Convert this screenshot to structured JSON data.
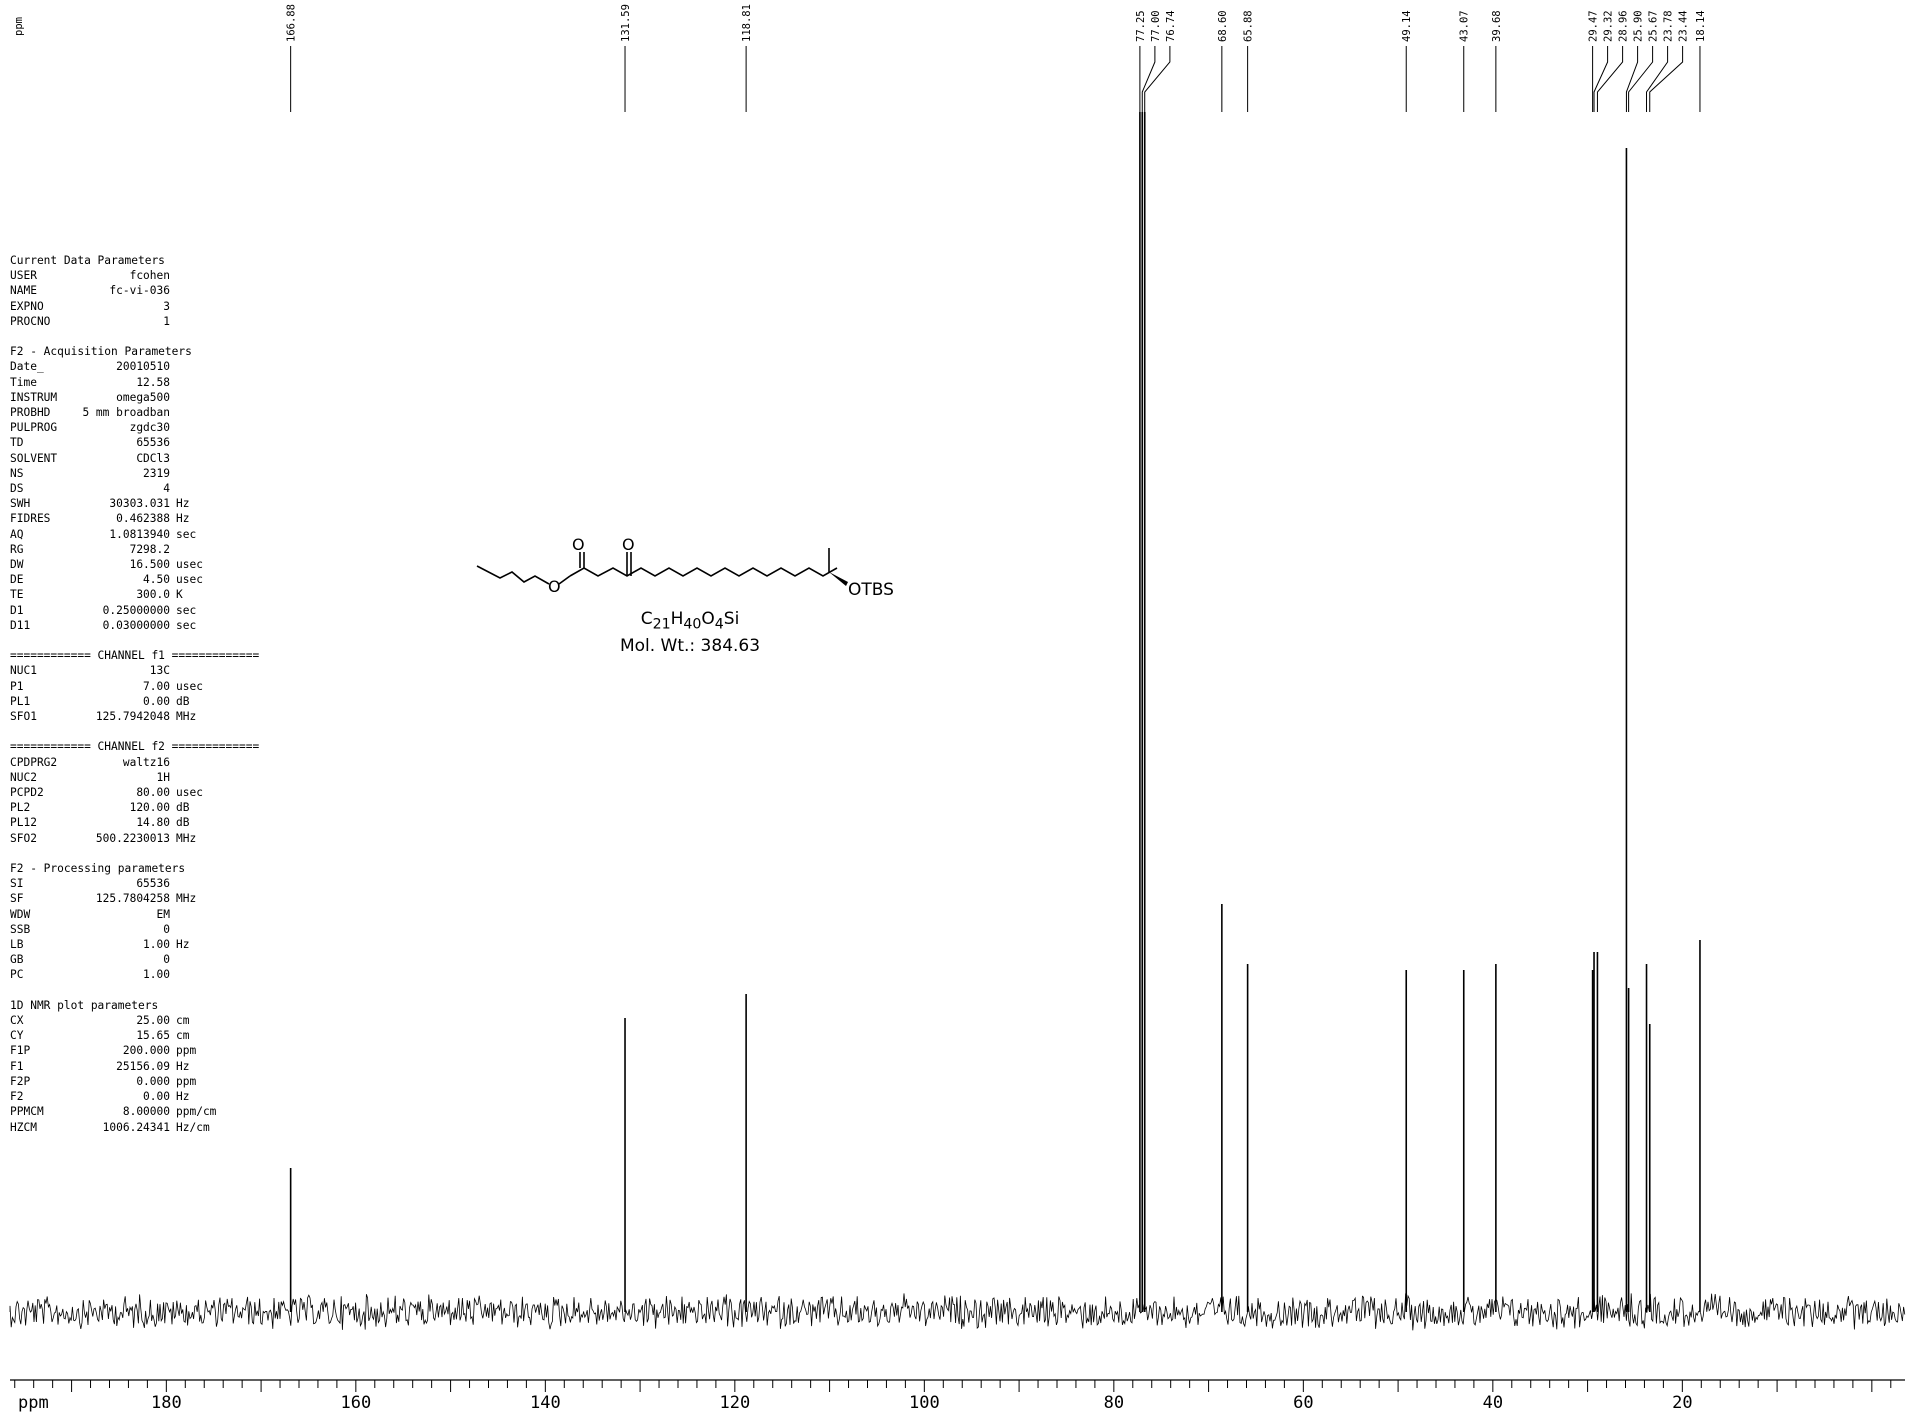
{
  "corner_label": "ppm",
  "structure": {
    "label_otbs": "OTBS",
    "label_o1": "O",
    "label_o2": "O",
    "label_o3": "O",
    "formula_c": "C",
    "formula_c_sub": "21",
    "formula_h": "H",
    "formula_h_sub": "40",
    "formula_o": "O",
    "formula_o_sub": "4",
    "formula_si": "Si",
    "mol_wt": "Mol. Wt.: 384.63"
  },
  "params": [
    {
      "header": "Current Data Parameters"
    },
    {
      "k": "USER",
      "v": "fcohen",
      "u": ""
    },
    {
      "k": "NAME",
      "v": "fc-vi-036",
      "u": ""
    },
    {
      "k": "EXPNO",
      "v": "3",
      "u": ""
    },
    {
      "k": "PROCNO",
      "v": "1",
      "u": ""
    },
    {
      "gap": true
    },
    {
      "header": "F2 - Acquisition Parameters"
    },
    {
      "k": "Date_",
      "v": "20010510",
      "u": ""
    },
    {
      "k": "Time",
      "v": "12.58",
      "u": ""
    },
    {
      "k": "INSTRUM",
      "v": "omega500",
      "u": ""
    },
    {
      "k": "PROBHD",
      "v": "5 mm broadban",
      "u": ""
    },
    {
      "k": "PULPROG",
      "v": "zgdc30",
      "u": ""
    },
    {
      "k": "TD",
      "v": "65536",
      "u": ""
    },
    {
      "k": "SOLVENT",
      "v": "CDCl3",
      "u": ""
    },
    {
      "k": "NS",
      "v": "2319",
      "u": ""
    },
    {
      "k": "DS",
      "v": "4",
      "u": ""
    },
    {
      "k": "SWH",
      "v": "30303.031",
      "u": "Hz"
    },
    {
      "k": "FIDRES",
      "v": "0.462388",
      "u": "Hz"
    },
    {
      "k": "AQ",
      "v": "1.0813940",
      "u": "sec"
    },
    {
      "k": "RG",
      "v": "7298.2",
      "u": ""
    },
    {
      "k": "DW",
      "v": "16.500",
      "u": "usec"
    },
    {
      "k": "DE",
      "v": "4.50",
      "u": "usec"
    },
    {
      "k": "TE",
      "v": "300.0",
      "u": "K"
    },
    {
      "k": "D1",
      "v": "0.25000000",
      "u": "sec"
    },
    {
      "k": "D11",
      "v": "0.03000000",
      "u": "sec"
    },
    {
      "gap": true
    },
    {
      "header": "============ CHANNEL f1 ============="
    },
    {
      "k": "NUC1",
      "v": "13C",
      "u": ""
    },
    {
      "k": "P1",
      "v": "7.00",
      "u": "usec"
    },
    {
      "k": "PL1",
      "v": "0.00",
      "u": "dB"
    },
    {
      "k": "SFO1",
      "v": "125.7942048",
      "u": "MHz"
    },
    {
      "gap": true
    },
    {
      "header": "============ CHANNEL f2 ============="
    },
    {
      "k": "CPDPRG2",
      "v": "waltz16",
      "u": ""
    },
    {
      "k": "NUC2",
      "v": "1H",
      "u": ""
    },
    {
      "k": "PCPD2",
      "v": "80.00",
      "u": "usec"
    },
    {
      "k": "PL2",
      "v": "120.00",
      "u": "dB"
    },
    {
      "k": "PL12",
      "v": "14.80",
      "u": "dB"
    },
    {
      "k": "SFO2",
      "v": "500.2230013",
      "u": "MHz"
    },
    {
      "gap": true
    },
    {
      "header": "F2 - Processing parameters"
    },
    {
      "k": "SI",
      "v": "65536",
      "u": ""
    },
    {
      "k": "SF",
      "v": "125.7804258",
      "u": "MHz"
    },
    {
      "k": "WDW",
      "v": "EM",
      "u": ""
    },
    {
      "k": "SSB",
      "v": "0",
      "u": ""
    },
    {
      "k": "LB",
      "v": "1.00",
      "u": "Hz"
    },
    {
      "k": "GB",
      "v": "0",
      "u": ""
    },
    {
      "k": "PC",
      "v": "1.00",
      "u": ""
    },
    {
      "gap": true
    },
    {
      "header": "1D NMR plot parameters"
    },
    {
      "k": "CX",
      "v": "25.00",
      "u": "cm"
    },
    {
      "k": "CY",
      "v": "15.65",
      "u": "cm"
    },
    {
      "k": "F1P",
      "v": "200.000",
      "u": "ppm"
    },
    {
      "k": "F1",
      "v": "25156.09",
      "u": "Hz"
    },
    {
      "k": "F2P",
      "v": "0.000",
      "u": "ppm"
    },
    {
      "k": "F2",
      "v": "0.00",
      "u": "Hz"
    },
    {
      "k": "PPMCM",
      "v": "8.00000",
      "u": "ppm/cm"
    },
    {
      "k": "HZCM",
      "v": "1006.24341",
      "u": "Hz/cm"
    }
  ],
  "chart_data": {
    "type": "line",
    "title": "",
    "xlabel": "ppm",
    "ylabel": "",
    "xlim": [
      200,
      0
    ],
    "reversed_x": true,
    "grid": false,
    "x_ticks": [
      180,
      160,
      140,
      120,
      100,
      80,
      60,
      40,
      20
    ],
    "peaks": [
      {
        "ppm": 166.88,
        "label": "166.88",
        "intensity": 0.12
      },
      {
        "ppm": 131.59,
        "label": "131.59",
        "intensity": 0.245
      },
      {
        "ppm": 118.81,
        "label": "118.81",
        "intensity": 0.265
      },
      {
        "ppm": 77.25,
        "label": "77.25",
        "intensity": 1.0
      },
      {
        "ppm": 77.0,
        "label": "77.00",
        "intensity": 1.0
      },
      {
        "ppm": 76.74,
        "label": "76.74",
        "intensity": 1.0
      },
      {
        "ppm": 68.6,
        "label": "68.60",
        "intensity": 0.34
      },
      {
        "ppm": 65.88,
        "label": "65.88",
        "intensity": 0.29
      },
      {
        "ppm": 49.14,
        "label": "49.14",
        "intensity": 0.285
      },
      {
        "ppm": 43.07,
        "label": "43.07",
        "intensity": 0.285
      },
      {
        "ppm": 39.68,
        "label": "39.68",
        "intensity": 0.29
      },
      {
        "ppm": 29.47,
        "label": "29.47",
        "intensity": 0.285
      },
      {
        "ppm": 29.32,
        "label": "29.32",
        "intensity": 0.3
      },
      {
        "ppm": 28.96,
        "label": "28.96",
        "intensity": 0.3
      },
      {
        "ppm": 25.9,
        "label": "25.90",
        "intensity": 0.97
      },
      {
        "ppm": 25.67,
        "label": "25.67",
        "intensity": 0.27
      },
      {
        "ppm": 23.78,
        "label": "23.78",
        "intensity": 0.29
      },
      {
        "ppm": 23.44,
        "label": "23.44",
        "intensity": 0.24
      },
      {
        "ppm": 18.14,
        "label": "18.14",
        "intensity": 0.31
      }
    ]
  }
}
